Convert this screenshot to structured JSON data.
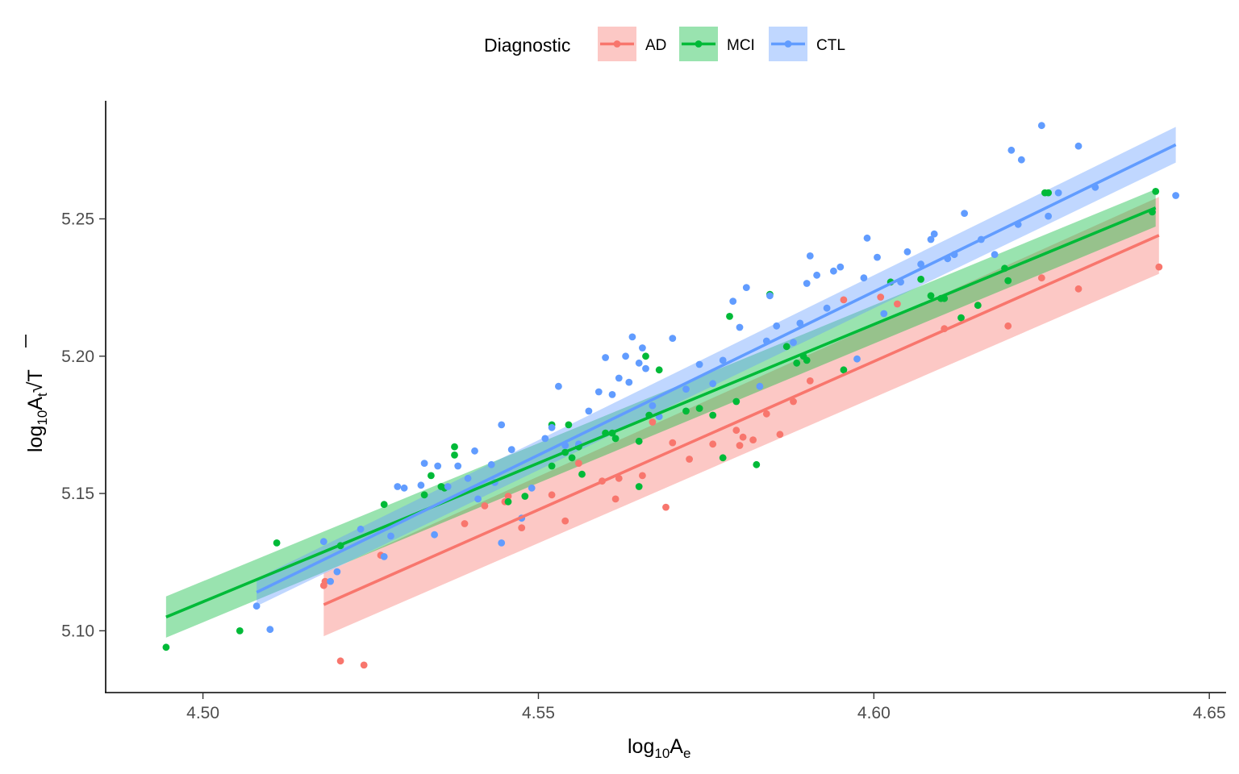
{
  "legend": {
    "title": "Diagnostic",
    "placement": "top"
  },
  "axes": {
    "x": {
      "label_main": "log",
      "label_sub": "10",
      "label_var": "A",
      "label_var_sub": "e"
    },
    "y": {
      "label_main": "log",
      "label_sub": "10",
      "label_var": "A",
      "label_var_sub": "t",
      "label_sqrt": "T"
    }
  },
  "chart_data": {
    "type": "scatter",
    "title": "",
    "xlim": [
      4.4855,
      4.6525
    ],
    "ylim": [
      5.0775,
      5.293
    ],
    "x_ticks": [
      4.5,
      4.55,
      4.6,
      4.65
    ],
    "x_tick_labels": [
      "4.50",
      "4.55",
      "4.60",
      "4.65"
    ],
    "y_ticks": [
      5.1,
      5.15,
      5.2,
      5.25
    ],
    "y_tick_labels": [
      "5.10",
      "5.15",
      "5.20",
      "5.25"
    ],
    "grid": false,
    "series": [
      {
        "name": "AD",
        "color": "#F8766D",
        "fit": {
          "x": [
            4.518,
            4.6425
          ],
          "y": [
            5.1095,
            5.244
          ],
          "ci_halfwidth": [
            0.0115,
            0.014
          ]
        },
        "points": [
          [
            4.518,
            5.1165
          ],
          [
            4.5182,
            5.118
          ],
          [
            4.5205,
            5.089
          ],
          [
            4.524,
            5.0875
          ],
          [
            4.5265,
            5.1275
          ],
          [
            4.539,
            5.139
          ],
          [
            4.542,
            5.1455
          ],
          [
            4.545,
            5.147
          ],
          [
            4.5455,
            5.149
          ],
          [
            4.5475,
            5.1375
          ],
          [
            4.552,
            5.1495
          ],
          [
            4.554,
            5.14
          ],
          [
            4.556,
            5.161
          ],
          [
            4.5595,
            5.1545
          ],
          [
            4.5615,
            5.148
          ],
          [
            4.562,
            5.1555
          ],
          [
            4.5655,
            5.1565
          ],
          [
            4.567,
            5.176
          ],
          [
            4.569,
            5.145
          ],
          [
            4.57,
            5.1685
          ],
          [
            4.5725,
            5.1625
          ],
          [
            4.576,
            5.168
          ],
          [
            4.5795,
            5.173
          ],
          [
            4.58,
            5.1675
          ],
          [
            4.5805,
            5.1705
          ],
          [
            4.582,
            5.1695
          ],
          [
            4.584,
            5.179
          ],
          [
            4.586,
            5.1715
          ],
          [
            4.588,
            5.1835
          ],
          [
            4.5905,
            5.191
          ],
          [
            4.5955,
            5.2205
          ],
          [
            4.601,
            5.2215
          ],
          [
            4.6035,
            5.219
          ],
          [
            4.6105,
            5.21
          ],
          [
            4.6155,
            5.2185
          ],
          [
            4.62,
            5.211
          ],
          [
            4.625,
            5.2285
          ],
          [
            4.6305,
            5.2245
          ],
          [
            4.6425,
            5.2325
          ]
        ]
      },
      {
        "name": "MCI",
        "color": "#00BA38",
        "fit": {
          "x": [
            4.4945,
            4.642
          ],
          "y": [
            5.105,
            5.254
          ],
          "ci_halfwidth": [
            0.0075,
            0.0068
          ]
        },
        "points": [
          [
            4.4945,
            5.094
          ],
          [
            4.5055,
            5.1
          ],
          [
            4.511,
            5.132
          ],
          [
            4.5205,
            5.131
          ],
          [
            4.527,
            5.146
          ],
          [
            4.533,
            5.1495
          ],
          [
            4.534,
            5.1565
          ],
          [
            4.5355,
            5.1525
          ],
          [
            4.536,
            5.152
          ],
          [
            4.5375,
            5.167
          ],
          [
            4.5375,
            5.164
          ],
          [
            4.5455,
            5.147
          ],
          [
            4.548,
            5.149
          ],
          [
            4.552,
            5.16
          ],
          [
            4.552,
            5.175
          ],
          [
            4.554,
            5.165
          ],
          [
            4.5545,
            5.175
          ],
          [
            4.555,
            5.163
          ],
          [
            4.556,
            5.167
          ],
          [
            4.5565,
            5.157
          ],
          [
            4.56,
            5.172
          ],
          [
            4.561,
            5.172
          ],
          [
            4.5615,
            5.17
          ],
          [
            4.565,
            5.169
          ],
          [
            4.565,
            5.1525
          ],
          [
            4.566,
            5.2
          ],
          [
            4.5665,
            5.1785
          ],
          [
            4.568,
            5.195
          ],
          [
            4.572,
            5.18
          ],
          [
            4.574,
            5.181
          ],
          [
            4.576,
            5.1785
          ],
          [
            4.5775,
            5.163
          ],
          [
            4.5785,
            5.2145
          ],
          [
            4.5795,
            5.1835
          ],
          [
            4.5825,
            5.1605
          ],
          [
            4.5845,
            5.2225
          ],
          [
            4.587,
            5.2035
          ],
          [
            4.5885,
            5.1975
          ],
          [
            4.5895,
            5.2
          ],
          [
            4.59,
            5.1985
          ],
          [
            4.5955,
            5.195
          ],
          [
            4.6025,
            5.227
          ],
          [
            4.607,
            5.228
          ],
          [
            4.6085,
            5.222
          ],
          [
            4.61,
            5.221
          ],
          [
            4.6105,
            5.221
          ],
          [
            4.613,
            5.214
          ],
          [
            4.6155,
            5.2185
          ],
          [
            4.6195,
            5.232
          ],
          [
            4.62,
            5.2275
          ],
          [
            4.6255,
            5.2595
          ],
          [
            4.626,
            5.2595
          ],
          [
            4.6415,
            5.2525
          ],
          [
            4.642,
            5.26
          ]
        ]
      },
      {
        "name": "CTL",
        "color": "#619CFF",
        "fit": {
          "x": [
            4.508,
            4.645
          ],
          "y": [
            5.114,
            5.277
          ],
          "ci_halfwidth": [
            0.005,
            0.0065
          ]
        },
        "points": [
          [
            4.508,
            5.109
          ],
          [
            4.51,
            5.1005
          ],
          [
            4.518,
            5.1325
          ],
          [
            4.519,
            5.118
          ],
          [
            4.52,
            5.1215
          ],
          [
            4.5235,
            5.137
          ],
          [
            4.527,
            5.127
          ],
          [
            4.528,
            5.1345
          ],
          [
            4.529,
            5.1525
          ],
          [
            4.53,
            5.152
          ],
          [
            4.5325,
            5.153
          ],
          [
            4.533,
            5.161
          ],
          [
            4.5345,
            5.135
          ],
          [
            4.535,
            5.16
          ],
          [
            4.5365,
            5.1525
          ],
          [
            4.538,
            5.16
          ],
          [
            4.5395,
            5.1555
          ],
          [
            4.5405,
            5.1655
          ],
          [
            4.541,
            5.148
          ],
          [
            4.543,
            5.1605
          ],
          [
            4.5435,
            5.154
          ],
          [
            4.5445,
            5.175
          ],
          [
            4.5445,
            5.132
          ],
          [
            4.546,
            5.166
          ],
          [
            4.5475,
            5.141
          ],
          [
            4.549,
            5.152
          ],
          [
            4.551,
            5.17
          ],
          [
            4.552,
            5.174
          ],
          [
            4.553,
            5.189
          ],
          [
            4.554,
            5.1675
          ],
          [
            4.556,
            5.168
          ],
          [
            4.5575,
            5.18
          ],
          [
            4.559,
            5.187
          ],
          [
            4.56,
            5.1995
          ],
          [
            4.561,
            5.186
          ],
          [
            4.562,
            5.192
          ],
          [
            4.563,
            5.2
          ],
          [
            4.5635,
            5.1905
          ],
          [
            4.564,
            5.207
          ],
          [
            4.565,
            5.1975
          ],
          [
            4.5655,
            5.203
          ],
          [
            4.566,
            5.1955
          ],
          [
            4.567,
            5.182
          ],
          [
            4.568,
            5.178
          ],
          [
            4.57,
            5.2065
          ],
          [
            4.572,
            5.188
          ],
          [
            4.574,
            5.197
          ],
          [
            4.576,
            5.19
          ],
          [
            4.5775,
            5.1985
          ],
          [
            4.579,
            5.22
          ],
          [
            4.58,
            5.2105
          ],
          [
            4.581,
            5.225
          ],
          [
            4.583,
            5.189
          ],
          [
            4.584,
            5.2055
          ],
          [
            4.5845,
            5.222
          ],
          [
            4.5855,
            5.211
          ],
          [
            4.588,
            5.205
          ],
          [
            4.589,
            5.212
          ],
          [
            4.59,
            5.2265
          ],
          [
            4.5905,
            5.2365
          ],
          [
            4.5915,
            5.2295
          ],
          [
            4.593,
            5.2175
          ],
          [
            4.594,
            5.231
          ],
          [
            4.595,
            5.2325
          ],
          [
            4.5975,
            5.199
          ],
          [
            4.5985,
            5.2285
          ],
          [
            4.599,
            5.243
          ],
          [
            4.6005,
            5.236
          ],
          [
            4.6015,
            5.2155
          ],
          [
            4.604,
            5.227
          ],
          [
            4.605,
            5.238
          ],
          [
            4.607,
            5.2335
          ],
          [
            4.6085,
            5.2425
          ],
          [
            4.609,
            5.2445
          ],
          [
            4.611,
            5.2355
          ],
          [
            4.612,
            5.237
          ],
          [
            4.6135,
            5.252
          ],
          [
            4.616,
            5.2425
          ],
          [
            4.618,
            5.237
          ],
          [
            4.6205,
            5.275
          ],
          [
            4.6215,
            5.248
          ],
          [
            4.622,
            5.2715
          ],
          [
            4.625,
            5.284
          ],
          [
            4.626,
            5.251
          ],
          [
            4.6275,
            5.2595
          ],
          [
            4.6305,
            5.2765
          ],
          [
            4.633,
            5.2615
          ],
          [
            4.645,
            5.2585
          ]
        ]
      }
    ]
  }
}
